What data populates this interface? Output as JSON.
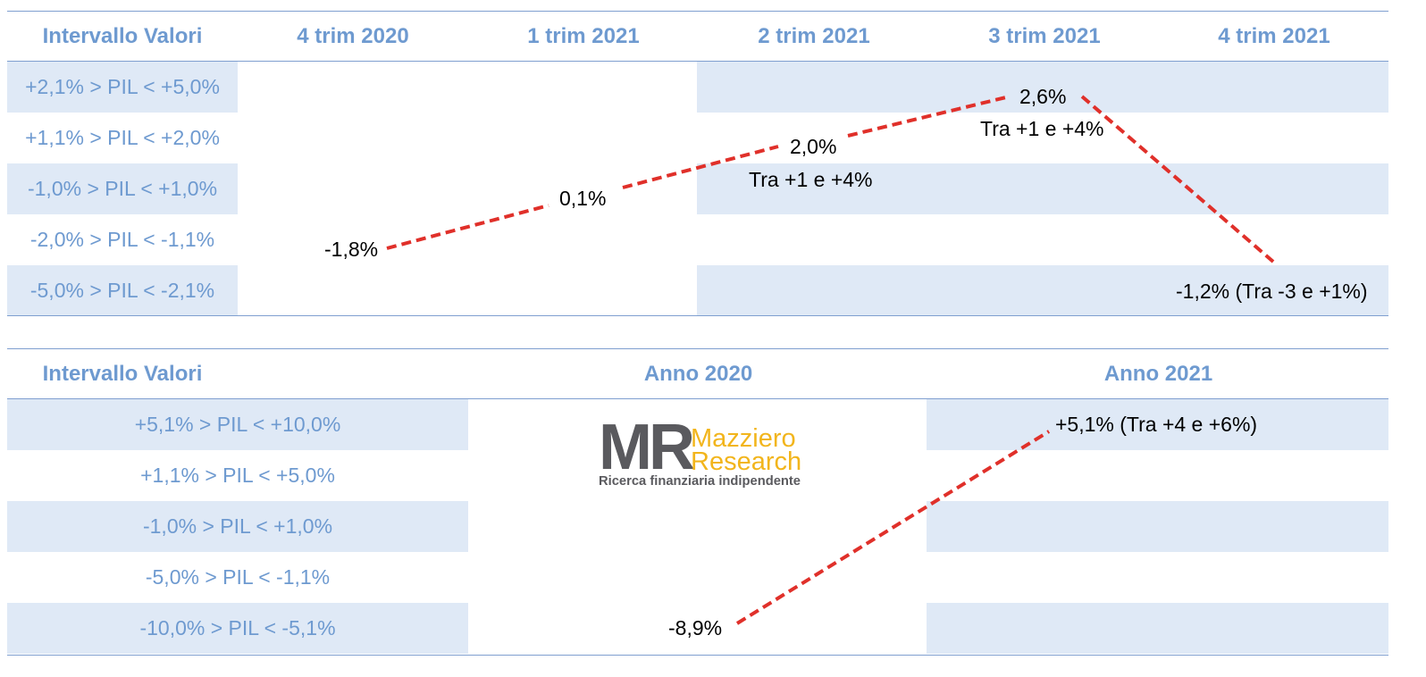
{
  "quarterly": {
    "header": {
      "label_col": "Intervallo Valori",
      "columns": [
        "4 trim 2020",
        "1 trim 2021",
        "2 trim 2021",
        "3 trim 2021",
        "4 trim 2021"
      ]
    },
    "rows": [
      "+2,1% > PIL < +5,0%",
      "+1,1% > PIL < +2,0%",
      "-1,0% > PIL < +1,0%",
      "-2,0% > PIL < -1,1%",
      "-5,0% > PIL < -2,1%"
    ],
    "annotations": {
      "q4_2020": "-1,8%",
      "q1_2021": "0,1%",
      "q2_2021": "2,0%",
      "q2_2021_range": "Tra +1 e +4%",
      "q3_2021": "2,6%",
      "q3_2021_range": "Tra +1 e +4%",
      "q4_2021": "-1,2% (Tra -3 e +1%)"
    }
  },
  "annual": {
    "header": {
      "label_col": "Intervallo Valori",
      "columns": [
        "Anno 2020",
        "Anno 2021"
      ]
    },
    "rows": [
      "+5,1% > PIL < +10,0%",
      "+1,1% > PIL < +5,0%",
      "-1,0% > PIL < +1,0%",
      "-5,0% > PIL < -1,1%",
      "-10,0% > PIL < -5,1%"
    ],
    "annotations": {
      "y2020": "-8,9%",
      "y2021": "+5,1% (Tra +4 e +6%)"
    }
  },
  "logo": {
    "monogram": "MR",
    "name_line1": "Mazziero",
    "name_line2": "Research",
    "tagline": "Ricerca finanziaria indipendente"
  },
  "colors": {
    "header_text": "#6e9ad0",
    "band": "#dfe9f6",
    "line": "#e0302a",
    "logo_gray": "#5a5a5e",
    "logo_yellow": "#f2b51c"
  },
  "chart_data": [
    {
      "type": "line",
      "categories": [
        "4 trim 2020",
        "1 trim 2021",
        "2 trim 2021",
        "3 trim 2021",
        "4 trim 2021"
      ],
      "series": [
        {
          "values": [
            -1.8,
            0.1,
            2.0,
            2.6,
            -1.2
          ]
        }
      ],
      "xlabel": "",
      "ylabel": "Intervallo Valori"
    },
    {
      "type": "line",
      "categories": [
        "Anno 2020",
        "Anno 2021"
      ],
      "series": [
        {
          "values": [
            -8.9,
            5.1
          ]
        }
      ],
      "xlabel": "",
      "ylabel": "Intervallo Valori"
    }
  ]
}
